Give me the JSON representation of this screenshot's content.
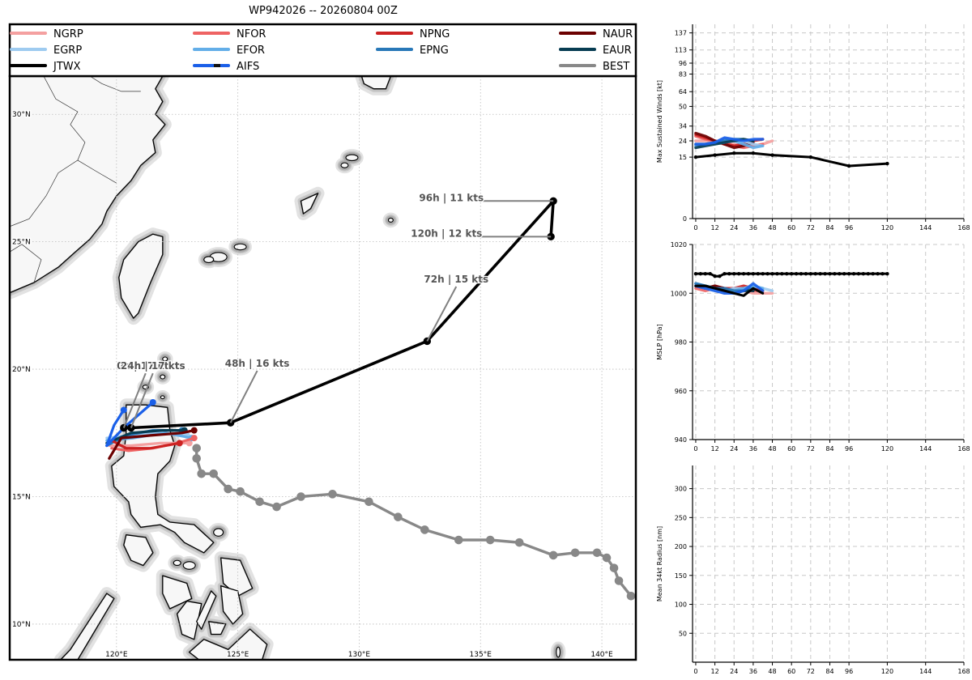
{
  "title": "WP942026 -- 20260804 00Z",
  "legend": {
    "placement": "top",
    "items": [
      {
        "name": "NGRP",
        "color": "#f4a0a0"
      },
      {
        "name": "NFOR",
        "color": "#ee6363"
      },
      {
        "name": "NPNG",
        "color": "#cc2222"
      },
      {
        "name": "NAUR",
        "color": "#6b0000"
      },
      {
        "name": "EGRP",
        "color": "#9ecbf0"
      },
      {
        "name": "EFOR",
        "color": "#63aee8"
      },
      {
        "name": "EPNG",
        "color": "#2878b8"
      },
      {
        "name": "EAUR",
        "color": "#073c52"
      },
      {
        "name": "JTWX",
        "color": "#000000"
      },
      {
        "name": "AIFS",
        "color": "#1a5fe8",
        "accent": "#111111"
      },
      {
        "name": "BEST",
        "color": "#888888"
      }
    ]
  },
  "map": {
    "lon_range": [
      115.6,
      141.4
    ],
    "lat_range": [
      8.6,
      31.5
    ],
    "lon_ticks": [
      120,
      125,
      130,
      135,
      140
    ],
    "lat_ticks": [
      10,
      15,
      20,
      25,
      30
    ],
    "lon_tick_labels": [
      "120°E",
      "125°E",
      "130°E",
      "135°E",
      "140°E"
    ],
    "lat_tick_labels": [
      "10°N",
      "15°N",
      "20°N",
      "25°N",
      "30°N"
    ],
    "grid": true,
    "land_color": "#f7f7f7",
    "coast_color": "#000000"
  },
  "chart_data": [
    {
      "type": "line",
      "subtype": "track-map",
      "series": [
        {
          "name": "BEST",
          "color": "#888888",
          "lon": [
            141.2,
            140.7,
            140.5,
            140.2,
            139.8,
            138.9,
            138.0,
            136.6,
            135.4,
            134.1,
            132.7,
            131.6,
            130.4,
            128.9,
            127.6,
            126.6,
            125.9,
            125.1,
            124.6,
            124.0,
            123.5,
            123.3,
            123.3
          ],
          "lat": [
            11.1,
            11.7,
            12.2,
            12.6,
            12.8,
            12.8,
            12.7,
            13.2,
            13.3,
            13.3,
            13.7,
            14.2,
            14.8,
            15.1,
            15.0,
            14.6,
            14.8,
            15.2,
            15.3,
            15.9,
            15.9,
            16.5,
            16.9
          ]
        },
        {
          "name": "NGRP",
          "color": "#f4a0a0",
          "lon": [
            119.7,
            120.6,
            121.8,
            123.0
          ],
          "lat": [
            17.0,
            17.0,
            17.1,
            17.1
          ]
        },
        {
          "name": "NFOR",
          "color": "#ee6363",
          "lon": [
            119.8,
            120.5,
            121.5,
            122.5,
            123.2
          ],
          "lat": [
            16.9,
            16.8,
            16.9,
            17.1,
            17.3
          ]
        },
        {
          "name": "NPNG",
          "color": "#cc2222",
          "lon": [
            119.8,
            120.4,
            121.4,
            122.6
          ],
          "lat": [
            17.2,
            16.9,
            16.9,
            17.1
          ]
        },
        {
          "name": "NAUR",
          "color": "#6b0000",
          "lon": [
            119.7,
            120.2,
            121.4,
            122.7,
            123.2
          ],
          "lat": [
            16.5,
            17.3,
            17.4,
            17.5,
            17.6
          ]
        },
        {
          "name": "EGRP",
          "color": "#9ecbf0",
          "lon": [
            119.6,
            120.5,
            121.7,
            122.9
          ],
          "lat": [
            17.3,
            17.4,
            17.5,
            17.4
          ]
        },
        {
          "name": "EFOR",
          "color": "#63aee8",
          "lon": [
            119.6,
            120.7,
            122.0,
            123.1
          ],
          "lat": [
            17.2,
            17.3,
            17.5,
            17.3
          ]
        },
        {
          "name": "EPNG",
          "color": "#2878b8",
          "lon": [
            119.6,
            120.4,
            121.5,
            122.7
          ],
          "lat": [
            17.0,
            17.4,
            17.6,
            17.6
          ]
        },
        {
          "name": "EAUR",
          "color": "#073c52",
          "lon": [
            119.6,
            120.6,
            121.9,
            122.8
          ],
          "lat": [
            17.1,
            17.5,
            17.6,
            17.6
          ]
        },
        {
          "name": "AIFS",
          "color": "#1a5fe8",
          "lon": [
            119.6,
            120.3,
            120.9,
            121.5
          ],
          "lat": [
            17.0,
            17.7,
            18.2,
            18.7
          ]
        },
        {
          "name": "AIFS",
          "color": "#1a5fe8",
          "lon": [
            119.6,
            119.9,
            120.3
          ],
          "lat": [
            17.0,
            17.8,
            18.4
          ]
        },
        {
          "name": "JTWX",
          "color": "#000000",
          "lon": [
            120.3,
            120.6,
            124.7,
            132.8,
            138.0,
            137.9
          ],
          "lat": [
            17.7,
            17.7,
            17.9,
            21.1,
            26.6,
            25.2
          ],
          "tau": [
            0,
            24,
            48,
            72,
            96,
            120
          ]
        }
      ],
      "annotations": [
        {
          "text": "0h | 17 kts",
          "lon": 121.2,
          "lat": 20.0
        },
        {
          "text": "24h | 17 kts",
          "lon": 121.5,
          "lat": 20.0
        },
        {
          "text": "48h | 16 kts",
          "lon": 125.8,
          "lat": 20.1
        },
        {
          "text": "72h | 15 kts",
          "lon": 134.0,
          "lat": 23.4
        },
        {
          "text": "96h | 11 kts",
          "lon": 133.8,
          "lat": 26.6
        },
        {
          "text": "120h | 12 kts",
          "lon": 133.6,
          "lat": 25.2
        }
      ]
    },
    {
      "type": "line",
      "ylabel": "Max Sustained Winds [kt]",
      "yscale": "sqrt",
      "ylim": [
        0,
        150
      ],
      "yticks": [
        0,
        15,
        24,
        34,
        50,
        64,
        83,
        96,
        113,
        137
      ],
      "xlim": [
        -2,
        168
      ],
      "xticks": [
        0,
        12,
        24,
        36,
        48,
        60,
        72,
        84,
        96,
        120,
        144,
        168
      ],
      "grid": true,
      "series": [
        {
          "name": "NGRP",
          "color": "#f4a0a0",
          "x": [
            0,
            6,
            12,
            18,
            24,
            30,
            36,
            42,
            48
          ],
          "y": [
            24,
            24,
            23,
            22,
            22,
            21,
            21,
            22,
            24
          ]
        },
        {
          "name": "NFOR",
          "color": "#ee6363",
          "x": [
            0,
            6,
            12,
            18,
            24,
            30,
            36,
            42
          ],
          "y": [
            27,
            25,
            24,
            23,
            21,
            20,
            21,
            22
          ]
        },
        {
          "name": "NPNG",
          "color": "#cc2222",
          "x": [
            0,
            6,
            12,
            18,
            24,
            30,
            36,
            42
          ],
          "y": [
            28,
            26,
            24,
            22,
            21,
            22,
            24,
            25
          ]
        },
        {
          "name": "NAUR",
          "color": "#6b0000",
          "x": [
            0,
            6,
            12,
            18,
            24,
            30,
            36
          ],
          "y": [
            29,
            27,
            24,
            22,
            20,
            21,
            23
          ]
        },
        {
          "name": "EGRP",
          "color": "#9ecbf0",
          "x": [
            0,
            6,
            12,
            18,
            24,
            30,
            36,
            42
          ],
          "y": [
            21,
            22,
            22,
            23,
            24,
            24,
            22,
            21
          ]
        },
        {
          "name": "EFOR",
          "color": "#63aee8",
          "x": [
            0,
            6,
            12,
            18,
            24,
            30,
            36,
            42
          ],
          "y": [
            21,
            22,
            23,
            25,
            24,
            22,
            20,
            21
          ]
        },
        {
          "name": "EPNG",
          "color": "#2878b8",
          "x": [
            0,
            6,
            12,
            18,
            24,
            30,
            36
          ],
          "y": [
            22,
            22,
            23,
            24,
            25,
            25,
            24
          ]
        },
        {
          "name": "EAUR",
          "color": "#073c52",
          "x": [
            0,
            6,
            12,
            18,
            24,
            30,
            36
          ],
          "y": [
            20,
            21,
            22,
            23,
            24,
            25,
            24
          ]
        },
        {
          "name": "AIFS",
          "color": "#1a5fe8",
          "x": [
            0,
            6,
            12,
            18,
            24,
            30,
            36,
            42
          ],
          "y": [
            22,
            22,
            23,
            26,
            25,
            24,
            25,
            25
          ]
        },
        {
          "name": "JTWX",
          "color": "#000000",
          "x": [
            0,
            12,
            24,
            36,
            48,
            72,
            96,
            120
          ],
          "y": [
            15,
            16,
            17,
            17,
            16,
            15,
            11,
            12
          ],
          "markers": true
        }
      ]
    },
    {
      "type": "line",
      "ylabel": "MSLP [hPa]",
      "ylim": [
        940,
        1020
      ],
      "yticks": [
        940,
        960,
        980,
        1000,
        1020
      ],
      "xlim": [
        -2,
        168
      ],
      "xticks": [
        0,
        12,
        24,
        36,
        48,
        60,
        72,
        84,
        96,
        120,
        144,
        168
      ],
      "grid": true,
      "series": [
        {
          "name": "NGRP",
          "color": "#f4a0a0",
          "x": [
            0,
            6,
            12,
            18,
            24,
            30,
            36,
            42,
            48
          ],
          "y": [
            1003,
            1002,
            1002,
            1001,
            1001,
            1001,
            1000,
            1000,
            1000
          ]
        },
        {
          "name": "NFOR",
          "color": "#ee6363",
          "x": [
            0,
            6,
            12,
            18,
            24,
            30,
            36,
            42
          ],
          "y": [
            1002,
            1001,
            1002,
            1002,
            1001,
            1002,
            1001,
            1001
          ]
        },
        {
          "name": "NPNG",
          "color": "#cc2222",
          "x": [
            0,
            6,
            12,
            18,
            24,
            30,
            36,
            42
          ],
          "y": [
            1003,
            1002,
            1003,
            1002,
            1002,
            1003,
            1002,
            1001
          ]
        },
        {
          "name": "NAUR",
          "color": "#6b0000",
          "x": [
            0,
            6,
            12,
            18,
            24,
            30,
            36
          ],
          "y": [
            1003,
            1002,
            1003,
            1002,
            1001,
            1002,
            1001
          ]
        },
        {
          "name": "EGRP",
          "color": "#9ecbf0",
          "x": [
            0,
            6,
            12,
            18,
            24,
            30,
            36,
            42,
            48
          ],
          "y": [
            1003,
            1002,
            1001,
            1001,
            1002,
            1002,
            1003,
            1002,
            1001
          ]
        },
        {
          "name": "EFOR",
          "color": "#63aee8",
          "x": [
            0,
            6,
            12,
            18,
            24,
            30,
            36,
            42
          ],
          "y": [
            1004,
            1003,
            1002,
            1001,
            1001,
            1002,
            1003,
            1002
          ]
        },
        {
          "name": "EPNG",
          "color": "#2878b8",
          "x": [
            0,
            6,
            12,
            18,
            24,
            30,
            36
          ],
          "y": [
            1004,
            1003,
            1002,
            1002,
            1001,
            1001,
            1002
          ]
        },
        {
          "name": "EAUR",
          "color": "#073c52",
          "x": [
            0,
            6,
            12,
            18,
            24,
            30,
            36
          ],
          "y": [
            1003,
            1003,
            1002,
            1001,
            1000,
            1001,
            1001
          ]
        },
        {
          "name": "AIFS",
          "color": "#1a5fe8",
          "x": [
            0,
            6,
            12,
            18,
            24,
            30,
            36,
            42
          ],
          "y": [
            1003,
            1002,
            1001,
            1000,
            1000,
            1001,
            1004,
            1001
          ]
        },
        {
          "name": "JTWX",
          "color": "#000000",
          "x": [
            0,
            6,
            12,
            18,
            24,
            30,
            36,
            42
          ],
          "y": [
            1003,
            1003,
            1002,
            1001,
            1000,
            999,
            1002,
            1000
          ]
        },
        {
          "name": "BEST",
          "color": "#000000",
          "x": [
            0,
            3,
            6,
            9,
            12,
            15,
            18,
            21,
            24,
            27,
            30,
            33,
            36,
            39,
            42,
            45,
            48,
            51,
            54,
            57,
            60,
            63,
            66,
            69,
            72,
            75,
            78,
            81,
            84,
            87,
            90,
            93,
            96,
            99,
            102,
            105,
            108,
            111,
            114,
            117,
            120
          ],
          "y": [
            1008,
            1008,
            1008,
            1008,
            1007,
            1007,
            1008,
            1008,
            1008,
            1008,
            1008,
            1008,
            1008,
            1008,
            1008,
            1008,
            1008,
            1008,
            1008,
            1008,
            1008,
            1008,
            1008,
            1008,
            1008,
            1008,
            1008,
            1008,
            1008,
            1008,
            1008,
            1008,
            1008,
            1008,
            1008,
            1008,
            1008,
            1008,
            1008,
            1008,
            1008
          ],
          "markers": true
        }
      ]
    },
    {
      "type": "line",
      "ylabel": "Mean 34kt Radius [nm]",
      "ylim": [
        0,
        340
      ],
      "yticks": [
        50,
        100,
        150,
        200,
        250,
        300
      ],
      "xlim": [
        -2,
        168
      ],
      "xticks": [
        0,
        12,
        24,
        36,
        48,
        60,
        72,
        84,
        96,
        120,
        144,
        168
      ],
      "grid": true,
      "series": []
    }
  ]
}
